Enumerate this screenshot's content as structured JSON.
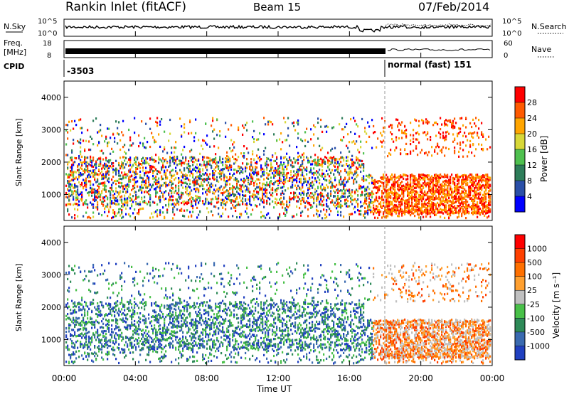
{
  "header": {
    "station": "Rankin Inlet (fitACF)",
    "beam": "Beam 15",
    "date": "07/Feb/2014"
  },
  "panels": {
    "nsky_label": "N.Sky",
    "nsearch_label": "N.Search",
    "nsky_ticks": [
      "10^5",
      "10^0"
    ],
    "nsearch_ticks": [
      "10^5",
      "10^0"
    ],
    "freq_label": "Freq.",
    "freq_unit": "[MHz]",
    "freq_ticks": [
      "18",
      "8"
    ],
    "nave_label": "Nave",
    "nave_ticks": [
      "60",
      "0"
    ],
    "cpid_label": "CPID",
    "cpid_left": "-3503",
    "cpid_right": "normal (fast) 151"
  },
  "chart_data": [
    {
      "type": "heatmap",
      "name": "power",
      "ylabel": "Slant Range [km]",
      "yticks": [
        "4000",
        "3000",
        "2000",
        "1000"
      ],
      "ylim": [
        200,
        4500
      ],
      "colorbar_label": "Power [dB]",
      "colorbar_ticks": [
        "28",
        "24",
        "20",
        "16",
        "12",
        "8",
        "4"
      ],
      "colors": [
        "#0000ff",
        "#2a4fa8",
        "#2e7d5a",
        "#4fc04f",
        "#d8d838",
        "#ffa500",
        "#ff5a00",
        "#ff0000"
      ]
    },
    {
      "type": "heatmap",
      "name": "velocity",
      "ylabel": "Slant Range [km]",
      "yticks": [
        "4000",
        "3000",
        "2000",
        "1000"
      ],
      "ylim": [
        200,
        4500
      ],
      "colorbar_label": "Velocity [m s⁻¹]",
      "colorbar_ticks": [
        "1000",
        "500",
        "100",
        "25",
        "-25",
        "-100",
        "-500",
        "-1000"
      ],
      "colors": [
        "#2040c0",
        "#3a6ab0",
        "#2e8a58",
        "#48c048",
        "#c0c0c0",
        "#ffa030",
        "#ff7000",
        "#ff4000",
        "#ff0000"
      ]
    }
  ],
  "time_axis": {
    "xlabel": "Time UT",
    "ticks": [
      "00:00",
      "04:00",
      "08:00",
      "12:00",
      "16:00",
      "20:00",
      "00:00"
    ]
  }
}
